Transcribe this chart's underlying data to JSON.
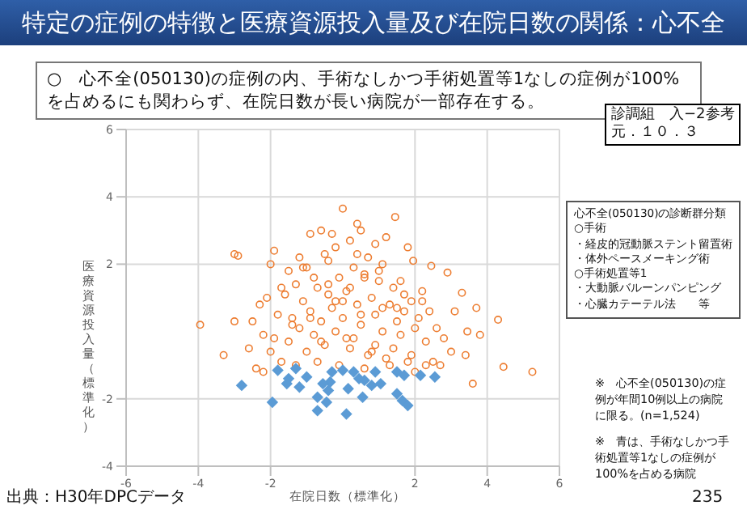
{
  "chart_data": {
    "type": "scatter",
    "title": "特定の症例の特徴と医療資源投入量及び在院日数の関係：心不全",
    "xlabel": "在院日数（標準化）",
    "ylabel": "医療資源投入量（標準化）",
    "xlim": [
      -6,
      6
    ],
    "xticks": [
      -6,
      -4,
      -2,
      2,
      4,
      6
    ],
    "ylim": [
      -4,
      6
    ],
    "yticks": [
      -4,
      -2,
      2,
      4,
      6
    ],
    "grid": true,
    "series": [
      {
        "color": "#ed7d31",
        "marker": "circle",
        "x": [
          0,
          1.45,
          0.4,
          0.5,
          -3.0,
          -1.9,
          1.8,
          1.95,
          2.45,
          2.9,
          3.3,
          3.7,
          4.3,
          -3.95,
          -3.0,
          -0.6,
          -0.9,
          -0.3,
          3.45,
          3.6,
          3.4,
          4.45,
          5.25,
          -2.9,
          1.2,
          0.9,
          -0.2,
          0.2,
          -1.2,
          -1.5,
          -1.0,
          -0.5,
          0.7,
          1.1,
          -1.7,
          -0.8,
          0.3,
          1.6,
          2.2,
          -2.3,
          -2.1,
          -1.6,
          -1.3,
          -0.7,
          -0.1,
          0.6,
          1.0,
          1.4,
          1.9,
          2.4,
          -2.5,
          -1.8,
          -1.1,
          -0.4,
          0.1,
          0.8,
          1.3,
          1.7,
          2.1,
          2.6,
          -2.2,
          -1.4,
          -0.9,
          -0.3,
          0.4,
          0.9,
          1.5,
          2.0,
          2.8,
          -2.6,
          -1.9,
          -1.2,
          -0.6,
          0.0,
          0.5,
          1.1,
          1.6,
          2.3,
          3.0,
          -2.0,
          -1.5,
          -0.8,
          -0.2,
          0.3,
          0.9,
          1.4,
          1.9,
          2.5,
          -1.7,
          -1.0,
          -0.5,
          0.2,
          0.7,
          1.2,
          1.8,
          2.7,
          -2.4,
          -1.3,
          -0.7,
          -0.1,
          0.6,
          1.3,
          2.0,
          -1.1,
          -0.4,
          0.4,
          1.0,
          1.7,
          -0.9,
          -0.2,
          0.5,
          1.1,
          -0.6,
          0.1,
          0.8,
          -2.2,
          2.3,
          3.1,
          -3.3,
          3.8,
          0.2,
          -0.4,
          0.6,
          -1.4,
          1.5,
          2.2,
          -2.0,
          0.0
        ],
        "values": [
          3.65,
          3.4,
          3.2,
          3.0,
          2.3,
          2.4,
          2.5,
          2.1,
          1.95,
          1.75,
          1.15,
          0.7,
          0.35,
          0.2,
          0.3,
          3.0,
          2.9,
          2.9,
          0,
          -1.55,
          -0.7,
          -1.05,
          -1.2,
          2.25,
          2.8,
          2.6,
          2.5,
          2.7,
          2.2,
          1.8,
          1.9,
          2.3,
          2.2,
          2.0,
          1.3,
          1.6,
          1.9,
          1.5,
          1.2,
          0.8,
          1.0,
          1.1,
          1.4,
          1.3,
          1.6,
          1.7,
          1.5,
          1.3,
          0.9,
          0.6,
          0.3,
          0.5,
          0.9,
          1.1,
          1.2,
          1.0,
          0.8,
          0.6,
          0.4,
          0.1,
          -0.1,
          0.2,
          0.6,
          0.7,
          0.8,
          0.5,
          0.3,
          0.1,
          -0.2,
          -0.5,
          -0.2,
          0.1,
          0.3,
          0.4,
          0.2,
          0.0,
          -0.1,
          -0.3,
          -0.6,
          -0.6,
          -0.3,
          -0.1,
          0.0,
          -0.2,
          -0.4,
          -0.5,
          -0.7,
          -0.9,
          -0.9,
          -0.6,
          -0.4,
          -0.5,
          -0.7,
          -0.8,
          -0.9,
          -1.0,
          -1.1,
          -1.0,
          -0.9,
          -1.0,
          -1.1,
          -1.0,
          -1.2,
          1.9,
          2.1,
          2.3,
          1.8,
          1.1,
          0.4,
          0.9,
          0.5,
          0.7,
          -0.3,
          -0.2,
          -0.6,
          -1.2,
          -1.0,
          0.6,
          -0.7,
          -0.1,
          1.3,
          1.4,
          1.6,
          0.4,
          0.7,
          0.9,
          2.0,
          0.9
        ]
      },
      {
        "color": "#5b9bd5",
        "marker": "diamond",
        "x": [
          -2.8,
          -1.95,
          -1.55,
          -1.2,
          -1.3,
          -1.0,
          -0.7,
          -0.7,
          -0.45,
          -0.35,
          -0.3,
          0.1,
          0.15,
          0.55,
          0.6,
          0.8,
          0.9,
          1.05,
          1.5,
          1.65,
          1.8,
          1.5,
          1.7,
          2.15,
          2.55,
          0.0,
          0.3,
          0.45,
          -0.4,
          -0.55,
          -1.5,
          -1.8
        ],
        "values": [
          -1.6,
          -2.1,
          -1.55,
          -1.65,
          -1.1,
          -1.35,
          -1.95,
          -2.35,
          -2.1,
          -1.5,
          -1.2,
          -2.45,
          -1.7,
          -1.95,
          -1.45,
          -1.6,
          -1.2,
          -1.55,
          -1.85,
          -2.05,
          -2.2,
          -1.2,
          -1.3,
          -1.3,
          -1.35,
          -1.15,
          -1.2,
          -1.4,
          -1.75,
          -1.55,
          -1.4,
          -1.15
        ]
      }
    ],
    "annotations": [
      "○　心不全(050130)の症例の内、手術なしかつ手術処置等1なしの症例が100%を占めるにも関わらず、在院日数が長い病院が一部存在する。",
      "診調組　入−2参考",
      "元．１０．３",
      "心不全(050130)の診断群分類",
      "○手術",
      "・経皮的冠動脈ステント留置術",
      "・体外ペースメーキング術",
      "○手術処置等1",
      "・大動脈バルーンパンピング",
      "・心臓カテーテル法　　等",
      "※　心不全(050130)の症例が年間10例以上の病院に限る。(n=1,524)",
      "※　青は、手術なしかつ手術処置等1なしの症例が100%を占める病院",
      "出典：H30年DPCデータ",
      "235"
    ]
  }
}
